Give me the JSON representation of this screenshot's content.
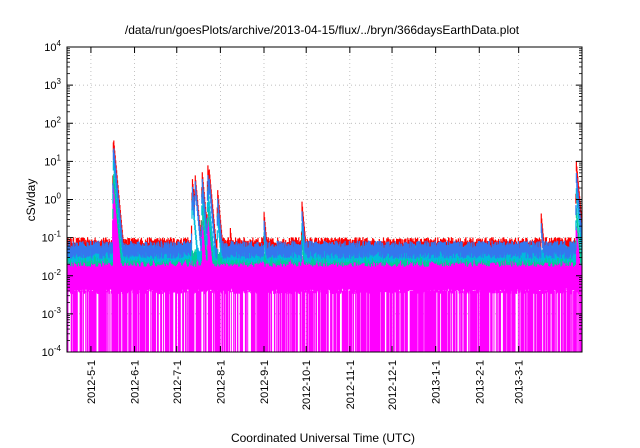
{
  "chart_data": {
    "type": "line",
    "title": "/data/run/goesPlots/archive/2013-04-15/flux/../bryn/366daysEarthData.plot",
    "xlabel": "Coordinated Universal Time (UTC)",
    "ylabel": "cSv/day",
    "y_scale": "log",
    "ylim": [
      0.0001,
      10000
    ],
    "xlim": [
      "2012-04-14",
      "2013-04-15"
    ],
    "x_ticks": [
      "2012-5-1",
      "2012-6-1",
      "2012-7-1",
      "2012-8-1",
      "2012-9-1",
      "2012-10-1",
      "2012-11-1",
      "2012-12-1",
      "2013-1-1",
      "2013-2-1",
      "2013-3-1"
    ],
    "y_ticks": [
      {
        "value": 0.0001,
        "base": "10",
        "exp": "-4"
      },
      {
        "value": 0.001,
        "base": "10",
        "exp": "-3"
      },
      {
        "value": 0.01,
        "base": "10",
        "exp": "-2"
      },
      {
        "value": 0.1,
        "base": "10",
        "exp": "-1"
      },
      {
        "value": 1,
        "base": "10",
        "exp": "0"
      },
      {
        "value": 10,
        "base": "10",
        "exp": "1"
      },
      {
        "value": 100,
        "base": "10",
        "exp": "2"
      },
      {
        "value": 1000,
        "base": "10",
        "exp": "3"
      },
      {
        "value": 10000,
        "base": "10",
        "exp": "4"
      }
    ],
    "grid": true,
    "series_colors": [
      "#ff00ff",
      "#00cc99",
      "#00bbdd",
      "#3377ee",
      "#ff0000"
    ],
    "series": [
      {
        "color": "#ff0000",
        "baseline": 0.08,
        "peaks": [
          [
            "2012-05-17",
            45
          ],
          [
            "2012-06-10",
            0.12
          ],
          [
            "2012-07-12",
            4
          ],
          [
            "2012-07-14",
            5
          ],
          [
            "2012-07-19",
            6
          ],
          [
            "2012-07-23",
            9
          ],
          [
            "2012-07-24",
            7
          ],
          [
            "2012-07-30",
            2
          ],
          [
            "2012-08-08",
            0.2
          ],
          [
            "2012-09-01",
            0.5
          ],
          [
            "2012-09-28",
            0.9
          ],
          [
            "2012-10-08",
            0.1
          ],
          [
            "2012-11-12",
            0.12
          ],
          [
            "2013-03-17",
            0.45
          ],
          [
            "2013-04-11",
            10
          ]
        ]
      },
      {
        "color": "#3377ee",
        "baseline": 0.065,
        "peaks": [
          [
            "2012-05-17",
            28
          ],
          [
            "2012-07-12",
            2.5
          ],
          [
            "2012-07-14",
            3.5
          ],
          [
            "2012-07-19",
            4
          ],
          [
            "2012-07-23",
            5
          ],
          [
            "2012-07-24",
            4
          ],
          [
            "2012-07-30",
            1.2
          ],
          [
            "2012-09-01",
            0.3
          ],
          [
            "2012-09-28",
            0.5
          ],
          [
            "2013-03-17",
            0.25
          ],
          [
            "2013-04-11",
            5
          ]
        ]
      },
      {
        "color": "#00bbdd",
        "baseline": 0.05,
        "peaks": [
          [
            "2012-05-17",
            15
          ],
          [
            "2012-07-12",
            1.5
          ],
          [
            "2012-07-19",
            2
          ],
          [
            "2012-07-23",
            2.5
          ],
          [
            "2012-07-30",
            0.5
          ],
          [
            "2012-09-01",
            0.15
          ],
          [
            "2012-09-28",
            0.25
          ],
          [
            "2013-04-11",
            2
          ]
        ]
      },
      {
        "color": "#00cc99",
        "baseline": 0.04,
        "peaks": [
          [
            "2012-05-17",
            6
          ],
          [
            "2012-07-19",
            0.8
          ],
          [
            "2012-07-23",
            1
          ],
          [
            "2012-09-28",
            0.12
          ],
          [
            "2013-04-11",
            0.6
          ]
        ]
      },
      {
        "color": "#ff00ff",
        "baseline": 0.03,
        "floor": 0.004,
        "dropouts_to": 0.0001,
        "peaks": [
          [
            "2012-05-17",
            3
          ],
          [
            "2012-07-19",
            0.3
          ],
          [
            "2012-07-23",
            0.4
          ],
          [
            "2013-04-11",
            0.2
          ]
        ]
      }
    ]
  }
}
